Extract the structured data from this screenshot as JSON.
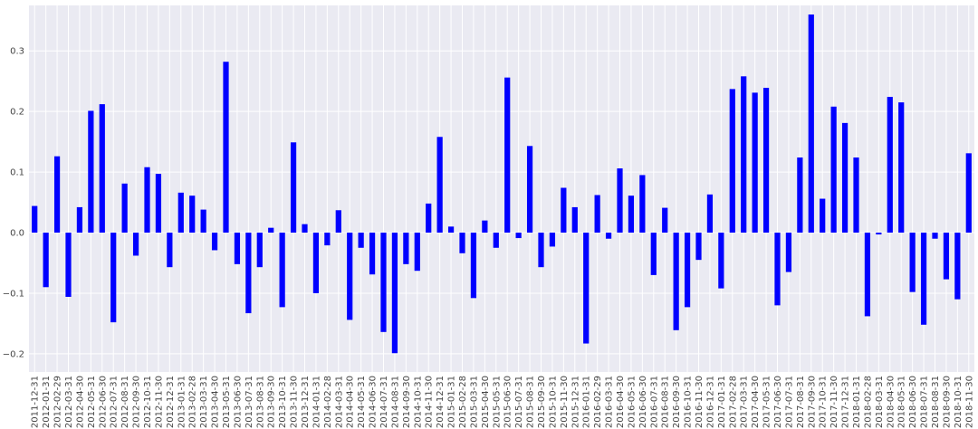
{
  "chart_data": {
    "type": "bar",
    "title": "",
    "xlabel": "",
    "ylabel": "",
    "ylim": [
      -0.23,
      0.375
    ],
    "yticks": [
      -0.2,
      -0.1,
      0.0,
      0.1,
      0.2,
      0.3
    ],
    "ytick_labels": [
      "−0.2",
      "−0.1",
      "0.0",
      "0.1",
      "0.2",
      "0.3"
    ],
    "grid": true,
    "background_color": "#eaeaf2",
    "grid_color": "#ffffff",
    "bar_color": "#0000ff",
    "categories": [
      "2011-12-31",
      "2012-01-31",
      "2012-02-29",
      "2012-03-31",
      "2012-04-30",
      "2012-05-31",
      "2012-06-30",
      "2012-07-31",
      "2012-08-31",
      "2012-09-30",
      "2012-10-31",
      "2012-11-30",
      "2012-12-31",
      "2013-01-31",
      "2013-02-28",
      "2013-03-31",
      "2013-04-30",
      "2013-05-31",
      "2013-06-30",
      "2013-07-31",
      "2013-08-31",
      "2013-09-30",
      "2013-10-31",
      "2013-11-30",
      "2013-12-31",
      "2014-01-31",
      "2014-02-28",
      "2014-03-31",
      "2014-04-30",
      "2014-05-31",
      "2014-06-30",
      "2014-07-31",
      "2014-08-31",
      "2014-09-30",
      "2014-10-31",
      "2014-11-30",
      "2014-12-31",
      "2015-01-31",
      "2015-02-28",
      "2015-03-31",
      "2015-04-30",
      "2015-05-31",
      "2015-06-30",
      "2015-07-31",
      "2015-08-31",
      "2015-09-30",
      "2015-10-31",
      "2015-11-30",
      "2015-12-31",
      "2016-01-31",
      "2016-02-29",
      "2016-03-31",
      "2016-04-30",
      "2016-05-31",
      "2016-06-30",
      "2016-07-31",
      "2016-08-31",
      "2016-09-30",
      "2016-10-31",
      "2016-11-30",
      "2016-12-31",
      "2017-01-31",
      "2017-02-28",
      "2017-03-31",
      "2017-04-30",
      "2017-05-31",
      "2017-06-30",
      "2017-07-31",
      "2017-08-31",
      "2017-09-30",
      "2017-10-31",
      "2017-11-30",
      "2017-12-31",
      "2018-01-31",
      "2018-02-28",
      "2018-03-31",
      "2018-04-30",
      "2018-05-31",
      "2018-06-30",
      "2018-07-31",
      "2018-08-31",
      "2018-09-30",
      "2018-10-31",
      "2018-11-30"
    ],
    "values": [
      0.044,
      -0.09,
      0.126,
      -0.106,
      0.042,
      0.201,
      0.212,
      -0.148,
      0.081,
      -0.038,
      0.108,
      0.097,
      -0.057,
      0.066,
      0.061,
      0.038,
      -0.029,
      0.282,
      -0.052,
      -0.133,
      -0.057,
      0.008,
      -0.123,
      0.149,
      0.014,
      -0.1,
      -0.021,
      0.037,
      -0.144,
      -0.025,
      -0.069,
      -0.164,
      -0.199,
      -0.052,
      -0.063,
      0.048,
      0.158,
      0.01,
      -0.034,
      -0.108,
      0.02,
      -0.025,
      0.256,
      -0.009,
      0.143,
      -0.057,
      -0.023,
      0.074,
      0.042,
      -0.183,
      0.062,
      -0.01,
      0.106,
      0.061,
      0.095,
      -0.07,
      0.041,
      -0.161,
      -0.123,
      -0.045,
      0.063,
      -0.092,
      0.237,
      0.258,
      0.231,
      0.239,
      -0.12,
      -0.065,
      0.124,
      0.36,
      0.056,
      0.208,
      0.181,
      0.124,
      -0.138,
      -0.003,
      0.224,
      0.215,
      -0.098,
      -0.152,
      -0.01,
      -0.077,
      -0.11,
      0.131
    ]
  }
}
